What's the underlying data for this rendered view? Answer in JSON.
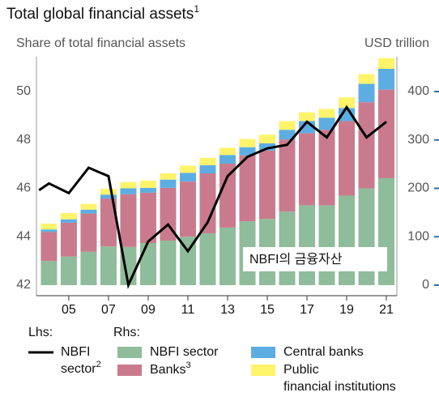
{
  "chart_data": {
    "type": "bar-line",
    "title": "Total global financial assets",
    "title_note": "1",
    "subtitle_left": "Share of total financial assets",
    "subtitle_right": "USD trillion",
    "annotation": "NBFI의 금융자산",
    "lhs_label": "Lhs:",
    "rhs_label": "Rhs:",
    "x": [
      2004,
      2005,
      2006,
      2007,
      2008,
      2009,
      2010,
      2011,
      2012,
      2013,
      2014,
      2015,
      2016,
      2017,
      2018,
      2019,
      2020,
      2021
    ],
    "xlim": [
      2003.37,
      2021.53
    ],
    "xticks": [
      {
        "value": 2005,
        "label": "05"
      },
      {
        "value": 2007,
        "label": "07"
      },
      {
        "value": 2009,
        "label": "09"
      },
      {
        "value": 2011,
        "label": "11"
      },
      {
        "value": 2013,
        "label": "13"
      },
      {
        "value": 2015,
        "label": "15"
      },
      {
        "value": 2017,
        "label": "17"
      },
      {
        "value": 2019,
        "label": "19"
      },
      {
        "value": 2021,
        "label": "21"
      }
    ],
    "ylim": [
      41.56,
      51.44
    ],
    "yticks": [
      42,
      44,
      46,
      48,
      50
    ],
    "y2lim": [
      -21.8,
      472
    ],
    "y2ticks": [
      0,
      100,
      200,
      300,
      400
    ],
    "grid": false,
    "line_series": {
      "name": "NBFI sector",
      "name_note": "2",
      "color": "#000000",
      "x": [
        2003.5,
        2004,
        2005,
        2006,
        2007,
        2008,
        2009,
        2010,
        2011,
        2012,
        2013,
        2014,
        2015,
        2016,
        2017,
        2018,
        2019,
        2020,
        2021
      ],
      "values": [
        45.92,
        46.2,
        45.8,
        46.85,
        46.5,
        42.0,
        43.8,
        44.5,
        43.4,
        44.6,
        46.5,
        47.3,
        47.65,
        47.8,
        48.75,
        48.1,
        49.35,
        48.1,
        48.75
      ]
    },
    "series": [
      {
        "name": "NBFI sector",
        "color": "#8fbc9a",
        "axis": "y2",
        "values": [
          50,
          59,
          69,
          80,
          79,
          87,
          92,
          100,
          107,
          119,
          132,
          137,
          152,
          165,
          165,
          185,
          200,
          221
        ]
      },
      {
        "name": "Banks",
        "name_note": "3",
        "color": "#c97b8d",
        "axis": "y2",
        "values": [
          60,
          70,
          79,
          99,
          109,
          104,
          109,
          114,
          124,
          132,
          136,
          141,
          149,
          149,
          156,
          154,
          178,
          183
        ]
      },
      {
        "name": "Central banks",
        "color": "#5dade2",
        "axis": "y2",
        "values": [
          5,
          7,
          8,
          8,
          12,
          10,
          17,
          18,
          17,
          18,
          17,
          15,
          20,
          25,
          25,
          27,
          38,
          43
        ]
      },
      {
        "name": "Public financial institutions",
        "color": "#fff36a",
        "axis": "y2",
        "values": [
          12,
          13,
          12,
          12,
          13,
          15,
          13,
          15,
          15,
          15,
          17,
          18,
          18,
          18,
          18,
          22,
          20,
          22
        ]
      }
    ]
  }
}
